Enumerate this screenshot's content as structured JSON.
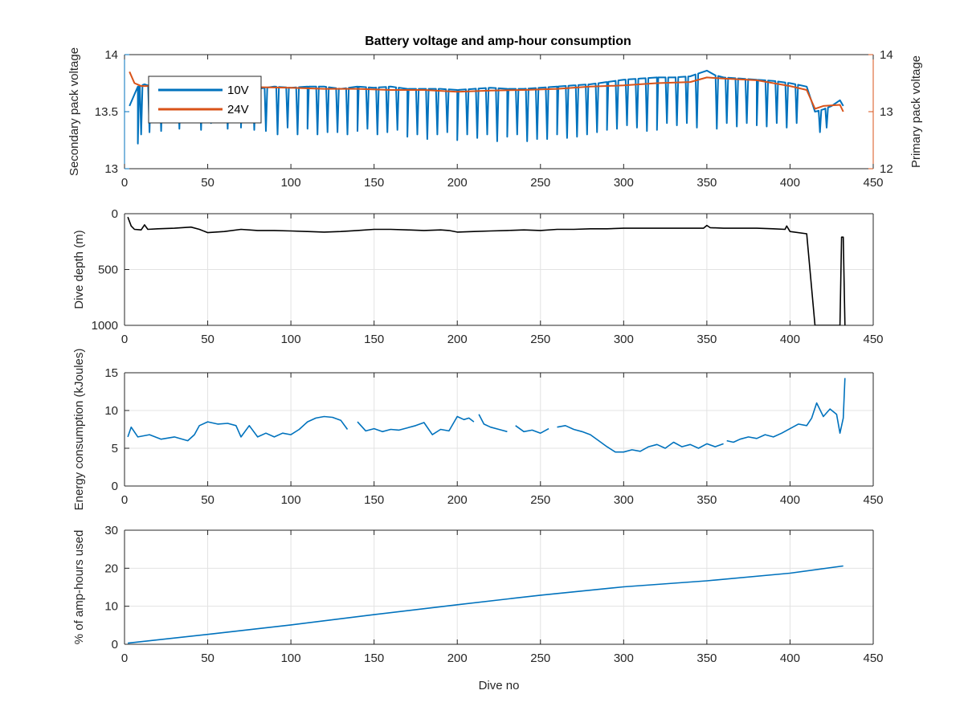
{
  "figure_title": "Battery voltage and amp-hour consumption",
  "colors": {
    "blue": "#0072BD",
    "orange": "#D95319",
    "black": "#000000",
    "grid": "#e3e3e3",
    "axis": "#262626"
  },
  "chart_data": [
    {
      "type": "line",
      "title": "Battery voltage and amp-hour consumption",
      "xlabel": "",
      "ylabel": "Secondary pack voltage",
      "ylabel_right": "Primary pack voltage",
      "xlim": [
        0,
        450
      ],
      "ylim": [
        13,
        14
      ],
      "ylim_right": [
        12,
        14
      ],
      "xticks": [
        "0",
        "50",
        "100",
        "150",
        "200",
        "250",
        "300",
        "350",
        "400",
        "450"
      ],
      "yticks": [
        "13",
        "13.5",
        "14"
      ],
      "yticks_right": [
        "12",
        "13",
        "14"
      ],
      "grid": false,
      "legend": "top-left",
      "series": [
        {
          "name": "10V",
          "axis": "left",
          "color": "#0072BD",
          "x": [
            3,
            8,
            12,
            20,
            30,
            40,
            50,
            60,
            70,
            80,
            90,
            100,
            110,
            120,
            130,
            140,
            150,
            160,
            170,
            180,
            190,
            200,
            210,
            220,
            230,
            240,
            250,
            260,
            270,
            280,
            290,
            300,
            310,
            320,
            330,
            340,
            350,
            355,
            360,
            370,
            380,
            390,
            400,
            410,
            415,
            420,
            425,
            430,
            432
          ],
          "y": [
            13.55,
            13.72,
            13.74,
            13.7,
            13.71,
            13.72,
            13.7,
            13.72,
            13.71,
            13.7,
            13.72,
            13.71,
            13.72,
            13.72,
            13.7,
            13.72,
            13.71,
            13.72,
            13.7,
            13.7,
            13.7,
            13.69,
            13.7,
            13.71,
            13.7,
            13.7,
            13.71,
            13.72,
            13.73,
            13.74,
            13.76,
            13.78,
            13.79,
            13.8,
            13.8,
            13.81,
            13.86,
            13.82,
            13.8,
            13.79,
            13.78,
            13.77,
            13.75,
            13.72,
            13.5,
            13.52,
            13.55,
            13.6,
            13.55
          ],
          "dips": [
            [
              8,
              13.22
            ],
            [
              10,
              13.3
            ],
            [
              15,
              13.32
            ],
            [
              22,
              13.33
            ],
            [
              33,
              13.35
            ],
            [
              46,
              13.34
            ],
            [
              52,
              13.4
            ],
            [
              62,
              13.35
            ],
            [
              70,
              13.36
            ],
            [
              78,
              13.34
            ],
            [
              85,
              13.33
            ],
            [
              92,
              13.3
            ],
            [
              98,
              13.36
            ],
            [
              104,
              13.3
            ],
            [
              110,
              13.35
            ],
            [
              116,
              13.3
            ],
            [
              122,
              13.32
            ],
            [
              128,
              13.32
            ],
            [
              134,
              13.3
            ],
            [
              140,
              13.33
            ],
            [
              146,
              13.35
            ],
            [
              152,
              13.3
            ],
            [
              158,
              13.32
            ],
            [
              164,
              13.34
            ],
            [
              170,
              13.28
            ],
            [
              176,
              13.3
            ],
            [
              182,
              13.26
            ],
            [
              188,
              13.3
            ],
            [
              194,
              13.32
            ],
            [
              200,
              13.25
            ],
            [
              206,
              13.3
            ],
            [
              212,
              13.27
            ],
            [
              218,
              13.3
            ],
            [
              224,
              13.24
            ],
            [
              230,
              13.28
            ],
            [
              236,
              13.3
            ],
            [
              242,
              13.24
            ],
            [
              248,
              13.26
            ],
            [
              254,
              13.26
            ],
            [
              260,
              13.3
            ],
            [
              266,
              13.27
            ],
            [
              272,
              13.28
            ],
            [
              278,
              13.3
            ],
            [
              284,
              13.32
            ],
            [
              290,
              13.34
            ],
            [
              296,
              13.35
            ],
            [
              302,
              13.38
            ],
            [
              308,
              13.36
            ],
            [
              314,
              13.33
            ],
            [
              320,
              13.34
            ],
            [
              326,
              13.4
            ],
            [
              332,
              13.38
            ],
            [
              338,
              13.4
            ],
            [
              344,
              13.36
            ],
            [
              356,
              13.35
            ],
            [
              362,
              13.4
            ],
            [
              368,
              13.37
            ],
            [
              374,
              13.4
            ],
            [
              380,
              13.38
            ],
            [
              386,
              13.37
            ],
            [
              392,
              13.4
            ],
            [
              398,
              13.36
            ],
            [
              404,
              13.4
            ],
            [
              418,
              13.32
            ],
            [
              422,
              13.36
            ]
          ]
        },
        {
          "name": "24V",
          "axis": "right",
          "color": "#D95319",
          "x": [
            3,
            6,
            10,
            20,
            40,
            60,
            80,
            100,
            120,
            140,
            160,
            180,
            200,
            220,
            240,
            260,
            280,
            300,
            320,
            340,
            350,
            360,
            380,
            400,
            410,
            415,
            420,
            430,
            432
          ],
          "y": [
            13.7,
            13.5,
            13.45,
            13.45,
            13.44,
            13.43,
            13.43,
            13.42,
            13.4,
            13.4,
            13.38,
            13.38,
            13.35,
            13.37,
            13.38,
            13.4,
            13.44,
            13.46,
            13.5,
            13.52,
            13.6,
            13.58,
            13.55,
            13.45,
            13.38,
            13.05,
            13.1,
            13.12,
            13.0
          ]
        }
      ]
    },
    {
      "type": "line",
      "xlabel": "",
      "ylabel": "Dive depth (m)",
      "xlim": [
        0,
        450
      ],
      "ylim": [
        0,
        1000
      ],
      "y_reversed": true,
      "xticks": [
        "0",
        "50",
        "100",
        "150",
        "200",
        "250",
        "300",
        "350",
        "400",
        "450"
      ],
      "yticks": [
        "0",
        "500",
        "1000"
      ],
      "grid": true,
      "series": [
        {
          "color": "#000000",
          "x": [
            2,
            4,
            6,
            10,
            12,
            14,
            20,
            30,
            40,
            45,
            50,
            60,
            70,
            80,
            90,
            100,
            110,
            120,
            130,
            140,
            150,
            160,
            170,
            180,
            190,
            195,
            200,
            210,
            220,
            230,
            240,
            250,
            260,
            270,
            280,
            290,
            300,
            310,
            320,
            330,
            340,
            348,
            350,
            352,
            360,
            370,
            380,
            390,
            397,
            398,
            400,
            410,
            415,
            430,
            431,
            432,
            433
          ],
          "y": [
            30,
            110,
            140,
            145,
            100,
            140,
            135,
            130,
            120,
            140,
            170,
            160,
            140,
            150,
            150,
            155,
            160,
            165,
            160,
            150,
            140,
            140,
            145,
            150,
            145,
            150,
            165,
            160,
            155,
            150,
            145,
            150,
            140,
            140,
            135,
            135,
            130,
            130,
            130,
            130,
            130,
            130,
            105,
            125,
            130,
            130,
            130,
            135,
            140,
            110,
            160,
            180,
            1000,
            1000,
            210,
            210,
            1000
          ]
        }
      ]
    },
    {
      "type": "line",
      "xlabel": "",
      "ylabel": "Energy consumption (kJoules)",
      "xlim": [
        0,
        450
      ],
      "ylim": [
        0,
        15
      ],
      "xticks": [
        "0",
        "50",
        "100",
        "150",
        "200",
        "250",
        "300",
        "350",
        "400",
        "450"
      ],
      "yticks": [
        "0",
        "5",
        "10",
        "15"
      ],
      "grid": true,
      "series": [
        {
          "color": "#0072BD",
          "segments": [
            {
              "x": [
                2,
                4,
                8,
                15,
                22,
                30,
                38,
                42,
                45,
                50,
                56,
                62,
                67,
                70,
                75,
                80,
                85,
                90,
                95,
                100,
                105,
                110,
                115,
                120,
                125,
                130,
                134
              ],
              "y": [
                6.5,
                7.8,
                6.5,
                6.8,
                6.2,
                6.5,
                6.0,
                6.8,
                8.0,
                8.5,
                8.2,
                8.3,
                8.0,
                6.5,
                8.0,
                6.5,
                7.0,
                6.5,
                7.0,
                6.8,
                7.5,
                8.5,
                9.0,
                9.2,
                9.1,
                8.7,
                7.5
              ]
            },
            {
              "x": [
                140,
                145,
                150,
                155,
                160,
                165,
                170,
                175,
                180,
                185,
                190,
                195,
                200,
                204,
                207,
                210
              ],
              "y": [
                8.5,
                7.3,
                7.6,
                7.2,
                7.5,
                7.4,
                7.7,
                8.0,
                8.4,
                6.8,
                7.5,
                7.3,
                9.2,
                8.8,
                9.0,
                8.5
              ]
            },
            {
              "x": [
                213,
                216,
                220,
                225,
                230
              ],
              "y": [
                9.5,
                8.2,
                7.8,
                7.5,
                7.2
              ]
            },
            {
              "x": [
                235,
                240,
                245,
                250,
                255
              ],
              "y": [
                8.0,
                7.2,
                7.4,
                7.0,
                7.6
              ]
            },
            {
              "x": [
                260,
                265,
                270,
                275,
                280,
                285,
                290,
                295,
                300,
                305,
                310,
                315,
                320,
                325,
                330,
                335,
                340,
                345,
                350,
                355,
                360
              ],
              "y": [
                7.8,
                8.0,
                7.5,
                7.2,
                6.8,
                6.0,
                5.2,
                4.5,
                4.5,
                4.8,
                4.6,
                5.2,
                5.5,
                5.0,
                5.8,
                5.2,
                5.5,
                5.0,
                5.6,
                5.2,
                5.6
              ]
            },
            {
              "x": [
                362,
                366,
                370,
                375,
                380,
                385,
                390,
                395,
                400,
                405,
                410,
                413,
                416,
                420,
                424,
                428,
                430,
                432,
                433
              ],
              "y": [
                6.0,
                5.8,
                6.2,
                6.5,
                6.3,
                6.8,
                6.5,
                7.0,
                7.6,
                8.2,
                8.0,
                9.0,
                11.0,
                9.2,
                10.2,
                9.5,
                7.0,
                9.0,
                14.3
              ]
            }
          ]
        }
      ]
    },
    {
      "type": "line",
      "xlabel": "Dive no",
      "ylabel": "% of amp-hours used",
      "xlim": [
        0,
        450
      ],
      "ylim": [
        0,
        30
      ],
      "xticks": [
        "0",
        "50",
        "100",
        "150",
        "200",
        "250",
        "300",
        "350",
        "400",
        "450"
      ],
      "yticks": [
        "0",
        "10",
        "20",
        "30"
      ],
      "grid": true,
      "series": [
        {
          "color": "#0072BD",
          "x": [
            2,
            50,
            100,
            150,
            200,
            250,
            300,
            350,
            400,
            432
          ],
          "y": [
            0.3,
            2.6,
            5.1,
            7.8,
            10.4,
            12.9,
            15.1,
            16.7,
            18.7,
            20.6
          ]
        }
      ]
    }
  ]
}
